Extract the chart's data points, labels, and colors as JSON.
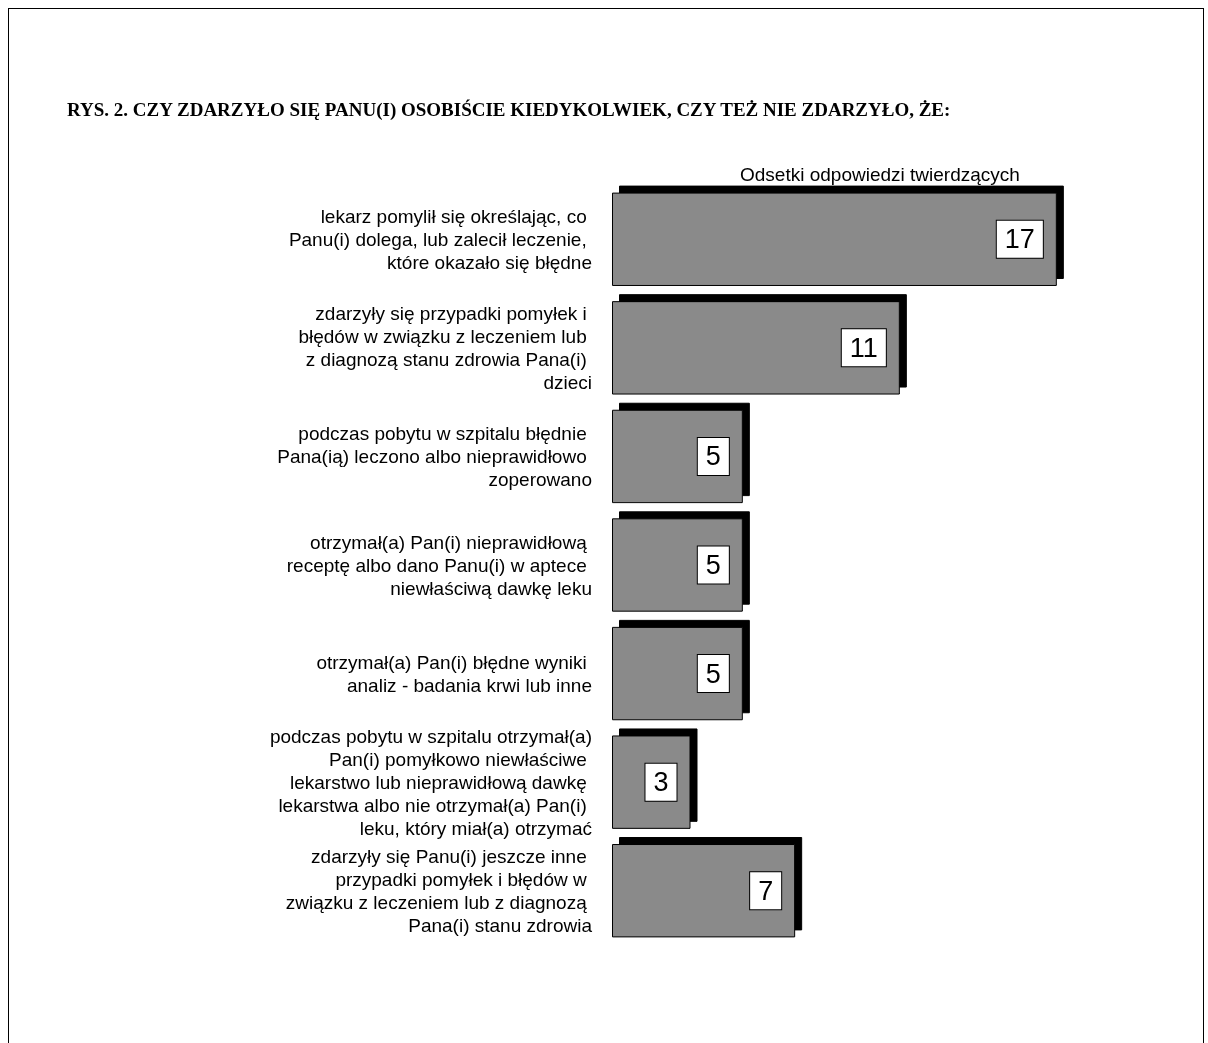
{
  "chart_data": {
    "type": "bar",
    "orientation": "horizontal",
    "title": "RYS. 2. CZY ZDARZYŁO SIĘ PANU(I) OSOBIŚCIE KIEDYKOLWIEK, CZY TEŻ NIE ZDARZYŁO, ŻE:",
    "subtitle": "Odsetki odpowiedzi twierdzących",
    "categories": [
      "lekarz pomylił się określając, co Panu(i) dolega, lub zalecił leczenie, które okazało się błędne",
      "zdarzyły się przypadki pomyłek i błędów w związku z leczeniem lub z diagnozą stanu zdrowia Pana(i) dzieci",
      "podczas pobytu w szpitalu błędnie Pana(ią) leczono albo nieprawidłowo zoperowano",
      "otrzymał(a) Pan(i) nieprawidłową receptę albo dano Panu(i) w aptece niewłaściwą dawkę leku",
      "otrzymał(a) Pan(i) błędne wyniki analiz - badania krwi lub inne",
      "podczas pobytu w szpitalu otrzymał(a) Pan(i) pomyłkowo niewłaściwe lekarstwo lub nieprawidłową dawkę lekarstwa albo nie otrzymał(a) Pan(i) leku, który miał(a) otrzymać",
      "zdarzyły się Panu(i) jeszcze inne przypadki pomyłek i błędów w związku z leczeniem lub z diagnozą Pana(i) stanu zdrowia"
    ],
    "values": [
      17,
      11,
      5,
      5,
      5,
      3,
      7
    ],
    "color": "#8a8a8a",
    "data_labels": true
  }
}
